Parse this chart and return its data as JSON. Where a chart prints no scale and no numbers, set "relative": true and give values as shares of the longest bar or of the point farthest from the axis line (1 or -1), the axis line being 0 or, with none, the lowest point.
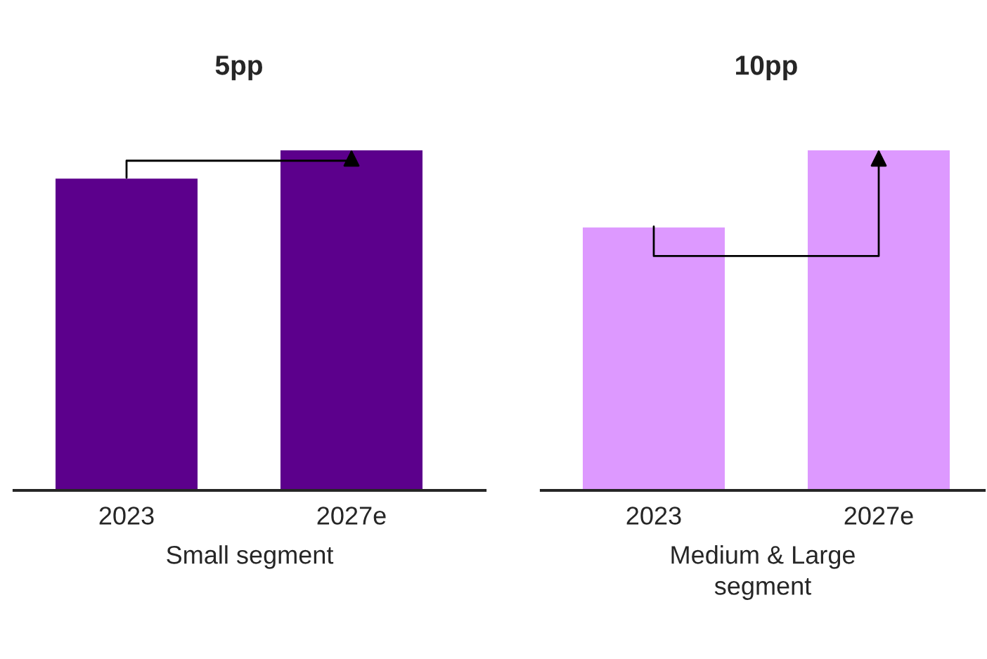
{
  "chart_data": [
    {
      "type": "bar",
      "relative": true,
      "xlabel": "Small segment",
      "categories": [
        "2023",
        "2027e"
      ],
      "values": [
        0.917,
        1
      ],
      "color": "#5c008c",
      "annotations": [
        "5pp"
      ]
    },
    {
      "type": "bar",
      "relative": true,
      "xlabel": "Medium & Large\nsegment",
      "categories": [
        "2023",
        "2027e"
      ],
      "values": [
        0.774,
        1
      ],
      "color": "#dd99ff",
      "annotations": [
        "10pp"
      ]
    }
  ]
}
